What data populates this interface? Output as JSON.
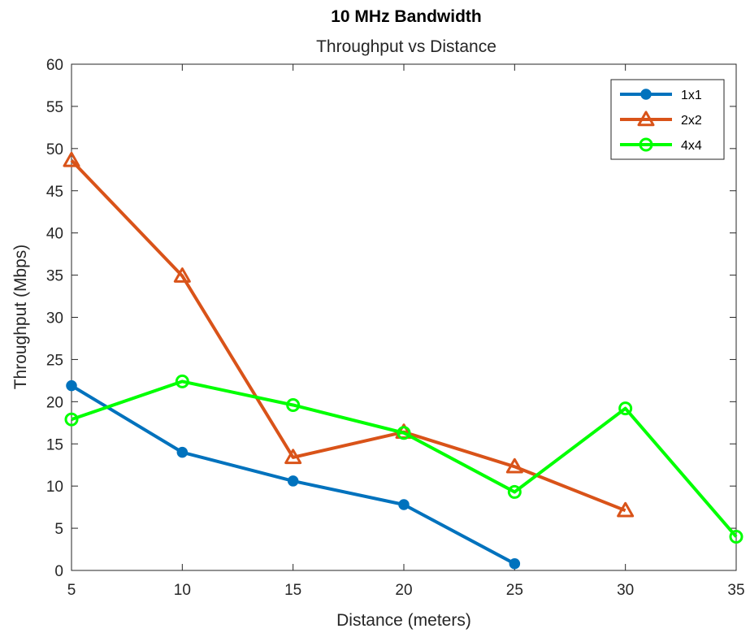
{
  "chart_data": {
    "type": "line",
    "title": "10 MHz Bandwidth",
    "subtitle": "Throughput vs Distance",
    "xlabel": "Distance (meters)",
    "ylabel": "Throughput (Mbps)",
    "xlim": [
      5,
      35
    ],
    "ylim": [
      0,
      60
    ],
    "xticks": [
      "5",
      "10",
      "15",
      "20",
      "25",
      "30",
      "35"
    ],
    "yticks": [
      "0",
      "5",
      "10",
      "15",
      "20",
      "25",
      "30",
      "35",
      "40",
      "45",
      "50",
      "55",
      "60"
    ],
    "grid": false,
    "legend_position": "top-right",
    "series": [
      {
        "name": "1x1",
        "color": "#0072BD",
        "marker": "filled-circle",
        "x": [
          5,
          10,
          15,
          20,
          25
        ],
        "y": [
          21.9,
          14.0,
          10.6,
          7.8,
          0.8
        ]
      },
      {
        "name": "2x2",
        "color": "#D95319",
        "marker": "triangle",
        "x": [
          5,
          10,
          15,
          20,
          25,
          30
        ],
        "y": [
          48.6,
          34.9,
          13.4,
          16.4,
          12.3,
          7.1
        ]
      },
      {
        "name": "4x4",
        "color": "#00FF00",
        "marker": "open-circle",
        "x": [
          5,
          10,
          15,
          20,
          25,
          30,
          35
        ],
        "y": [
          17.9,
          22.4,
          19.6,
          16.3,
          9.3,
          19.2,
          4.0
        ]
      }
    ]
  }
}
